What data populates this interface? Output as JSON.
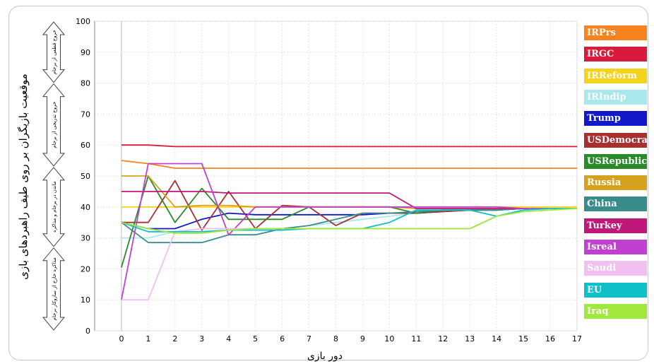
{
  "chart_data": {
    "type": "line",
    "xlabel": "دور بازی",
    "ylabel": "موقعیت بازیگران بر روی طیف راهبردهای بازی",
    "xlim": [
      -1,
      17
    ],
    "ylim": [
      0,
      100
    ],
    "x_ticks": [
      0,
      1,
      2,
      3,
      4,
      5,
      6,
      7,
      8,
      9,
      10,
      11,
      12,
      13,
      14,
      15,
      16,
      17
    ],
    "y_ticks": [
      0,
      10,
      20,
      30,
      40,
      50,
      60,
      70,
      80,
      90,
      100
    ],
    "grid": true,
    "legend_position": "right",
    "regions": [
      {
        "label": "خروج قطعی از برجام",
        "from": 80,
        "to": 100
      },
      {
        "label": "خروج تدریجی از برجام",
        "from": 53,
        "to": 80
      },
      {
        "label": "ماندن در برجام و مذاکره",
        "from": 27,
        "to": 53
      },
      {
        "label": "مذاکره خارج از سازوکار برجام",
        "from": 0,
        "to": 27
      }
    ],
    "x": [
      0,
      1,
      2,
      3,
      4,
      5,
      6,
      7,
      8,
      9,
      10,
      11,
      12,
      13,
      14,
      15,
      16,
      17
    ],
    "series": [
      {
        "name": "IRPrs",
        "color": "#f7821e",
        "values": [
          55,
          54,
          52.5,
          52.5,
          52.5,
          52.5,
          52.5,
          52.5,
          52.5,
          52.5,
          52.5,
          52.5,
          52.5,
          52.5,
          52.5,
          52.5,
          52.5,
          52.5
        ]
      },
      {
        "name": "IRGC",
        "color": "#d81a3c",
        "values": [
          60,
          60,
          59.5,
          59.5,
          59.5,
          59.5,
          59.5,
          59.5,
          59.5,
          59.5,
          59.5,
          59.5,
          59.5,
          59.5,
          59.5,
          59.5,
          59.5,
          59.5
        ]
      },
      {
        "name": "IRReform",
        "color": "#f5d31b",
        "values": [
          40,
          40,
          40,
          40,
          40,
          40,
          40,
          40,
          40,
          40,
          40,
          40,
          40,
          40,
          40,
          40,
          40,
          40
        ]
      },
      {
        "name": "IRIndip",
        "color": "#a8e8ea",
        "values": [
          30,
          30,
          32,
          33,
          33,
          33,
          33,
          34,
          35,
          36,
          37,
          38,
          39,
          39,
          39,
          39.5,
          39.5,
          39.5
        ]
      },
      {
        "name": "Trump",
        "color": "#1218c8",
        "values": [
          35,
          33,
          33,
          36,
          38,
          37.5,
          37.5,
          37.5,
          37.5,
          37.5,
          38,
          38,
          38.5,
          39,
          39,
          39.5,
          39.5,
          39.5
        ]
      },
      {
        "name": "USDemocrat",
        "color": "#a83030",
        "values": [
          35,
          35,
          48.5,
          32.5,
          45,
          33,
          40.5,
          40,
          34,
          38,
          38,
          38,
          38.5,
          39,
          39,
          39.5,
          39.5,
          39.5
        ]
      },
      {
        "name": "USRepublic",
        "color": "#2a8a2a",
        "values": [
          20.5,
          50,
          35,
          46,
          36,
          36,
          36,
          40,
          40,
          40,
          40,
          38,
          39,
          39,
          39,
          39.5,
          39.5,
          39.5
        ]
      },
      {
        "name": "Russia",
        "color": "#d6a21e",
        "values": [
          50,
          50,
          40,
          40.5,
          40.5,
          40,
          40,
          40,
          40,
          40,
          40,
          39.5,
          39.5,
          39.5,
          39.5,
          39.5,
          39.5,
          39.5
        ]
      },
      {
        "name": "China",
        "color": "#3a8c8c",
        "values": [
          35,
          28.5,
          28.5,
          28.5,
          31,
          31,
          33,
          34,
          36,
          38,
          38,
          38.5,
          39,
          39,
          39,
          39.5,
          39.5,
          39.5
        ]
      },
      {
        "name": "Turkey",
        "color": "#c0187a",
        "values": [
          45,
          45,
          45,
          45,
          44.5,
          44.5,
          44.5,
          44.5,
          44.5,
          44.5,
          44.5,
          39.5,
          39.5,
          39.5,
          39.5,
          39.5,
          39.5,
          39.5
        ]
      },
      {
        "name": "Isreal",
        "color": "#c040d0",
        "values": [
          10,
          54,
          54,
          54,
          31,
          40,
          40,
          40,
          40,
          40,
          40,
          40,
          40,
          40,
          40,
          39.5,
          39.5,
          39.5
        ]
      },
      {
        "name": "Saudi",
        "color": "#f0c0f0",
        "values": [
          10,
          10,
          32,
          33,
          33,
          33,
          33,
          33,
          33,
          33,
          33,
          33,
          33,
          33,
          37,
          39,
          39.5,
          39.5
        ]
      },
      {
        "name": "EU",
        "color": "#10c0c8",
        "values": [
          35,
          32,
          32,
          32,
          32.5,
          32.5,
          32.5,
          33,
          33,
          33,
          35,
          39,
          39,
          39,
          37,
          39,
          39.5,
          39.5
        ]
      },
      {
        "name": "Iraq",
        "color": "#a0e83c",
        "values": [
          35,
          33,
          31.5,
          31.5,
          32.5,
          33,
          33,
          33,
          33,
          33,
          33,
          33,
          33,
          33,
          37,
          38.5,
          39,
          39.5
        ]
      }
    ]
  }
}
